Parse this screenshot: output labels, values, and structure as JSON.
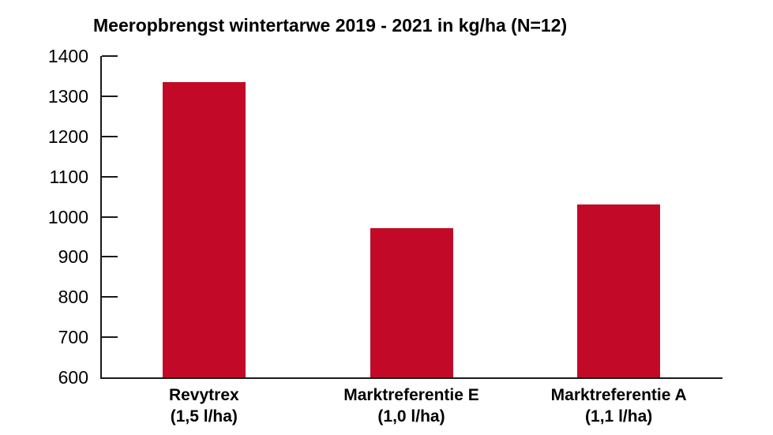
{
  "chart_data": {
    "type": "bar",
    "title": "Meeropbrengst wintertarwe 2019 - 2021 in kg/ha (N=12)",
    "categories": [
      "Revytrex",
      "Marktreferentie E",
      "Marktreferentie A"
    ],
    "category_sublabels": [
      "(1,5 l/ha)",
      "(1,0 l/ha)",
      "(1,1 l/ha)"
    ],
    "values": [
      1335,
      972,
      1030
    ],
    "xlabel": "",
    "ylabel": "",
    "ylim": [
      600,
      1400
    ],
    "yticks": [
      600,
      700,
      800,
      900,
      1000,
      1100,
      1200,
      1300,
      1400
    ],
    "grid": false,
    "legend": false,
    "bar_color": "#C20A28",
    "axis_color": "#1a1a1a",
    "text_color": "#000000",
    "background_color": "#ffffff"
  }
}
